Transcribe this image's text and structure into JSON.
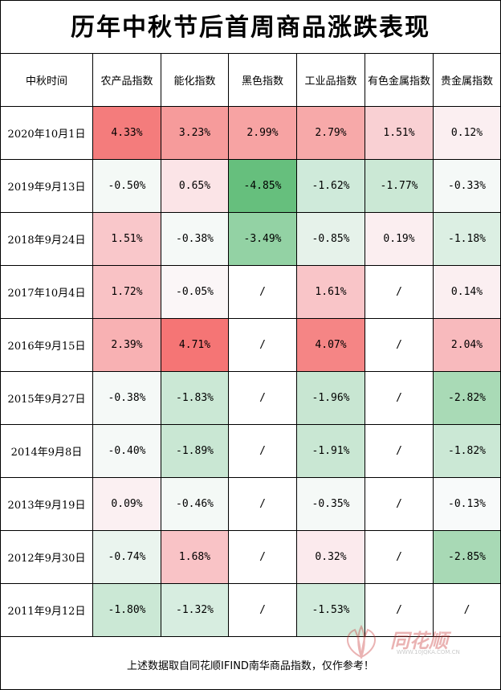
{
  "title": "历年中秋节后首周商品涨跌表现",
  "headers": [
    "中秋时间",
    "农产品指数",
    "能化指数",
    "黑色指数",
    "工业品指数",
    "有色金属指数",
    "贵金属指数"
  ],
  "rows": [
    {
      "date": "2020年10月1日",
      "cells": [
        {
          "v": "4.33%",
          "c": "#f47c7c"
        },
        {
          "v": "3.23%",
          "c": "#f69b9b"
        },
        {
          "v": "2.99%",
          "c": "#f7a3a3"
        },
        {
          "v": "2.79%",
          "c": "#f7a9a9"
        },
        {
          "v": "1.51%",
          "c": "#f9d0d3"
        },
        {
          "v": "0.12%",
          "c": "#fbeff1"
        }
      ]
    },
    {
      "date": "2019年9月13日",
      "cells": [
        {
          "v": "-0.50%",
          "c": "#f4f9f6"
        },
        {
          "v": "0.65%",
          "c": "#fbe4e7"
        },
        {
          "v": "-4.85%",
          "c": "#66bf7d"
        },
        {
          "v": "-1.62%",
          "c": "#cfeada"
        },
        {
          "v": "-1.77%",
          "c": "#cbe8d5"
        },
        {
          "v": "-0.33%",
          "c": "#f5f9f7"
        }
      ]
    },
    {
      "date": "2018年9月24日",
      "cells": [
        {
          "v": "1.51%",
          "c": "#f9c7ca"
        },
        {
          "v": "-0.38%",
          "c": "#f5f9f7"
        },
        {
          "v": "-3.49%",
          "c": "#93d2a4"
        },
        {
          "v": "-0.85%",
          "c": "#e6f2ea"
        },
        {
          "v": "0.19%",
          "c": "#fbeef0"
        },
        {
          "v": "-1.18%",
          "c": "#dcefe3"
        }
      ]
    },
    {
      "date": "2017年10月4日",
      "cells": [
        {
          "v": "1.72%",
          "c": "#f9c2c5"
        },
        {
          "v": "-0.05%",
          "c": "#fbf6f7"
        },
        {
          "v": "/",
          "c": "#ffffff"
        },
        {
          "v": "1.61%",
          "c": "#f9c5c8"
        },
        {
          "v": "/",
          "c": "#ffffff"
        },
        {
          "v": "0.14%",
          "c": "#fbeff1"
        }
      ]
    },
    {
      "date": "2016年9月15日",
      "cells": [
        {
          "v": "2.39%",
          "c": "#f8b1b3"
        },
        {
          "v": "4.71%",
          "c": "#f57575"
        },
        {
          "v": "/",
          "c": "#ffffff"
        },
        {
          "v": "4.07%",
          "c": "#f58585"
        },
        {
          "v": "/",
          "c": "#ffffff"
        },
        {
          "v": "2.04%",
          "c": "#f8baBD"
        }
      ]
    },
    {
      "date": "2015年9月27日",
      "cells": [
        {
          "v": "-0.38%",
          "c": "#f5f9f7"
        },
        {
          "v": "-1.83%",
          "c": "#cbe8d5"
        },
        {
          "v": "/",
          "c": "#ffffff"
        },
        {
          "v": "-1.96%",
          "c": "#c8e6d2"
        },
        {
          "v": "/",
          "c": "#ffffff"
        },
        {
          "v": "-2.82%",
          "c": "#a9dab6"
        }
      ]
    },
    {
      "date": "2014年9月8日",
      "cells": [
        {
          "v": "-0.40%",
          "c": "#f5f9f7"
        },
        {
          "v": "-1.89%",
          "c": "#c9e7d3"
        },
        {
          "v": "/",
          "c": "#ffffff"
        },
        {
          "v": "-1.91%",
          "c": "#c9e7d3"
        },
        {
          "v": "/",
          "c": "#ffffff"
        },
        {
          "v": "-1.82%",
          "c": "#cbe8d5"
        }
      ]
    },
    {
      "date": "2013年9月19日",
      "cells": [
        {
          "v": "0.09%",
          "c": "#fbf0f2"
        },
        {
          "v": "-0.46%",
          "c": "#f4f9f6"
        },
        {
          "v": "/",
          "c": "#ffffff"
        },
        {
          "v": "-0.35%",
          "c": "#f5f9f7"
        },
        {
          "v": "/",
          "c": "#ffffff"
        },
        {
          "v": "-0.13%",
          "c": "#f8fafa"
        }
      ]
    },
    {
      "date": "2012年9月30日",
      "cells": [
        {
          "v": "-0.74%",
          "c": "#eaf4ee"
        },
        {
          "v": "1.68%",
          "c": "#f9c3c6"
        },
        {
          "v": "/",
          "c": "#ffffff"
        },
        {
          "v": "0.32%",
          "c": "#fbeaed"
        },
        {
          "v": "/",
          "c": "#ffffff"
        },
        {
          "v": "-2.85%",
          "c": "#a8d9b5"
        }
      ]
    },
    {
      "date": "2011年9月12日",
      "cells": [
        {
          "v": "-1.80%",
          "c": "#cbe8d5"
        },
        {
          "v": "-1.32%",
          "c": "#d7ede0"
        },
        {
          "v": "/",
          "c": "#ffffff"
        },
        {
          "v": "-1.53%",
          "c": "#d2ebdc"
        },
        {
          "v": "/",
          "c": "#ffffff"
        },
        {
          "v": "/",
          "c": "#ffffff"
        }
      ]
    }
  ],
  "footer": {
    "note": "上述数据取自同花顺IFIND南华商品指数，仅作参考！",
    "watermark_brand": "同花顺",
    "watermark_url": "WWW.10JQKA.COM.CN"
  }
}
